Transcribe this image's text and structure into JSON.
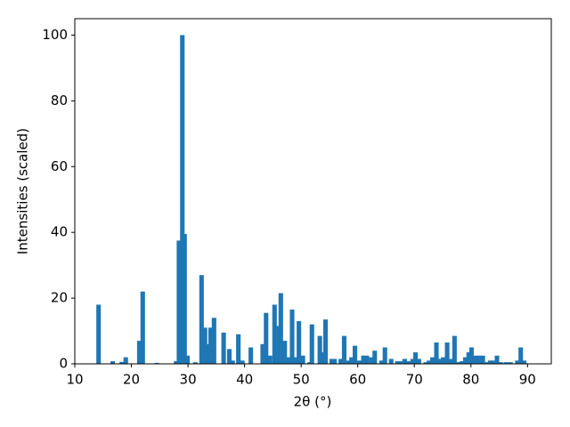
{
  "chart_data": {
    "type": "bar",
    "x_label": "2θ (°)",
    "y_label": "Intensities (scaled)",
    "color": "#1f77b4",
    "grid": false,
    "xlim": [
      10,
      94.2
    ],
    "ylim": [
      0,
      105
    ],
    "xticks": [
      10,
      20,
      30,
      40,
      50,
      60,
      70,
      80,
      90
    ],
    "yticks": [
      0,
      20,
      40,
      60,
      80,
      100
    ],
    "x": [
      14.2,
      16.7,
      18.3,
      19.0,
      21.4,
      22.0,
      24.5,
      27.9,
      28.4,
      29.0,
      29.4,
      29.9,
      31.3,
      32.4,
      33.0,
      33.5,
      34.0,
      34.6,
      36.3,
      37.3,
      37.9,
      38.9,
      39.6,
      41.1,
      43.2,
      43.8,
      44.5,
      45.3,
      45.8,
      46.4,
      47.1,
      47.6,
      48.4,
      48.9,
      49.6,
      50.3,
      51.5,
      51.9,
      53.3,
      53.8,
      54.3,
      55.4,
      55.9,
      57.0,
      57.6,
      58.4,
      58.9,
      59.5,
      60.3,
      61.0,
      61.6,
      62.4,
      63.0,
      64.2,
      64.8,
      65.9,
      67.0,
      67.6,
      68.3,
      69.1,
      69.7,
      70.2,
      70.8,
      72.0,
      72.6,
      73.2,
      73.9,
      74.5,
      75.1,
      75.8,
      76.5,
      77.1,
      77.7,
      78.4,
      79.0,
      79.6,
      80.1,
      80.8,
      81.5,
      82.1,
      82.7,
      83.4,
      84.0,
      84.6,
      85.3,
      86.2,
      87.0,
      88.2,
      88.8,
      89.4
    ],
    "values": [
      18,
      0.8,
      0.6,
      2,
      7,
      22,
      0.3,
      0.8,
      37.5,
      100,
      39.5,
      2.5,
      0.5,
      27,
      11,
      6,
      11,
      14,
      9.5,
      4.5,
      1,
      9,
      1,
      5,
      6,
      15.5,
      2.5,
      18,
      11.5,
      21.5,
      7,
      2,
      16.5,
      2,
      13,
      2.5,
      0.5,
      12,
      8.5,
      3.5,
      13.5,
      1.5,
      1.5,
      1.5,
      8.5,
      1,
      2,
      5.5,
      1,
      2.5,
      2.5,
      2,
      4,
      1,
      5,
      1.5,
      0.8,
      0.8,
      1.5,
      0.8,
      1.5,
      3.5,
      1.5,
      0.5,
      1,
      2,
      6.5,
      1.5,
      2,
      6.5,
      1.5,
      8.5,
      0.5,
      0.8,
      2,
      3.5,
      5,
      2.5,
      2.5,
      2.5,
      0.5,
      1,
      1,
      2.5,
      0.5,
      0.5,
      0.5,
      1,
      5,
      1
    ]
  }
}
